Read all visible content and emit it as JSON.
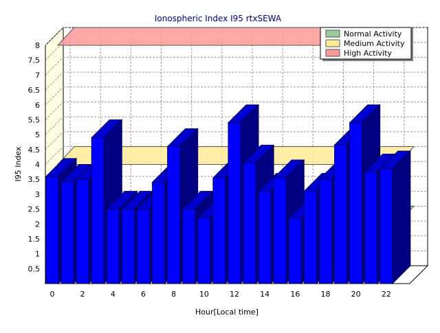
{
  "chart_data": {
    "type": "bar",
    "title": "Ionospheric Index I95 rtxSEWA",
    "xlabel": "Hour[Local time]",
    "ylabel": "I95 Index",
    "ylim": [
      0,
      8
    ],
    "yticks": [
      "0.5",
      "1",
      "1.5",
      "2",
      "2.5",
      "3",
      "3.5",
      "4",
      "4.5",
      "5",
      "5.5",
      "6",
      "6.5",
      "7",
      "7.5",
      "8"
    ],
    "xticks": [
      "0",
      "2",
      "4",
      "6",
      "8",
      "10",
      "12",
      "14",
      "16",
      "18",
      "20",
      "22"
    ],
    "x": [
      0,
      1,
      2,
      3,
      4,
      5,
      6,
      7,
      8,
      9,
      10,
      11,
      12,
      13,
      14,
      15,
      16,
      17,
      18,
      19,
      20,
      21,
      22,
      23
    ],
    "values": [
      3.6,
      3.4,
      3.5,
      4.9,
      2.5,
      2.5,
      2.5,
      3.4,
      4.6,
      2.5,
      2.2,
      3.55,
      5.4,
      4.05,
      3.1,
      3.55,
      2.2,
      3.1,
      3.5,
      4.65,
      5.4,
      3.75,
      3.85,
      null
    ],
    "bar_color": "#0000ff",
    "bands": [
      {
        "name": "Normal Activity",
        "value": 2.0,
        "color": "#99cc99"
      },
      {
        "name": "Medium Activity",
        "value": 4.0,
        "color": "#ffeb99"
      },
      {
        "name": "High Activity",
        "value": 8.0,
        "color": "#ff9999"
      }
    ],
    "legend": {
      "position": "top-right",
      "entries": [
        "Normal Activity",
        "Medium Activity",
        "High Activity"
      ]
    },
    "grid": true
  }
}
